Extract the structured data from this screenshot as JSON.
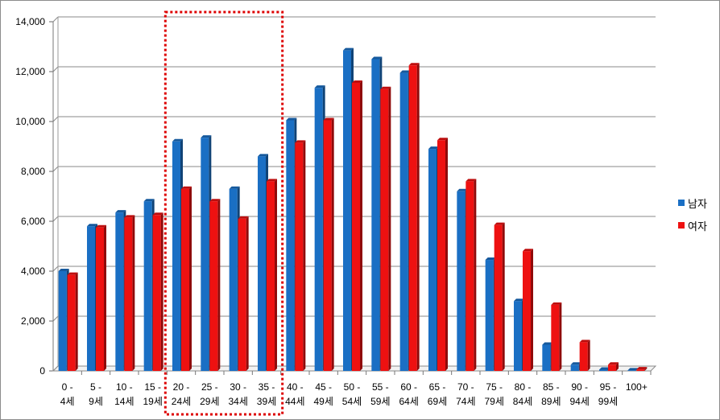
{
  "chart_data": {
    "type": "bar",
    "categories": [
      [
        "0 -",
        "4세"
      ],
      [
        "5 -",
        "9세"
      ],
      [
        "10 -",
        "14세"
      ],
      [
        "15 -",
        "19세"
      ],
      [
        "20 -",
        "24세"
      ],
      [
        "25 -",
        "29세"
      ],
      [
        "30 -",
        "34세"
      ],
      [
        "35 -",
        "39세"
      ],
      [
        "40 -",
        "44세"
      ],
      [
        "45 -",
        "49세"
      ],
      [
        "50 -",
        "54세"
      ],
      [
        "55 -",
        "59세"
      ],
      [
        "60 -",
        "64세"
      ],
      [
        "65 -",
        "69세"
      ],
      [
        "70 -",
        "74세"
      ],
      [
        "75 -",
        "79세"
      ],
      [
        "80 -",
        "84세"
      ],
      [
        "85 -",
        "89세"
      ],
      [
        "90 -",
        "94세"
      ],
      [
        "95 -",
        "99세"
      ],
      [
        "100+",
        ""
      ]
    ],
    "series": [
      {
        "name": "남자",
        "color": "#1a6fc4",
        "values": [
          4000,
          5800,
          6350,
          6800,
          9200,
          9350,
          7300,
          8600,
          10050,
          11350,
          12850,
          12500,
          11950,
          8900,
          7200,
          4450,
          2800,
          1050,
          250,
          50,
          20
        ]
      },
      {
        "name": "여자",
        "color": "#ee1111",
        "values": [
          3850,
          5750,
          6150,
          6250,
          7300,
          6800,
          6100,
          7600,
          9150,
          10050,
          11550,
          11300,
          12250,
          9250,
          7600,
          5850,
          4800,
          2650,
          1150,
          250,
          60
        ]
      }
    ],
    "ylim": [
      0,
      14000
    ],
    "yticks": [
      "0",
      "2,000",
      "4,000",
      "6,000",
      "8,000",
      "10,000",
      "12,000",
      "14,000"
    ],
    "grid": true,
    "legend_position": "right",
    "highlight": {
      "categories": [
        "20 - 24세",
        "25 - 29세",
        "30 - 34세",
        "35 - 39세"
      ],
      "style": "dotted",
      "color": "#dd0000"
    }
  }
}
